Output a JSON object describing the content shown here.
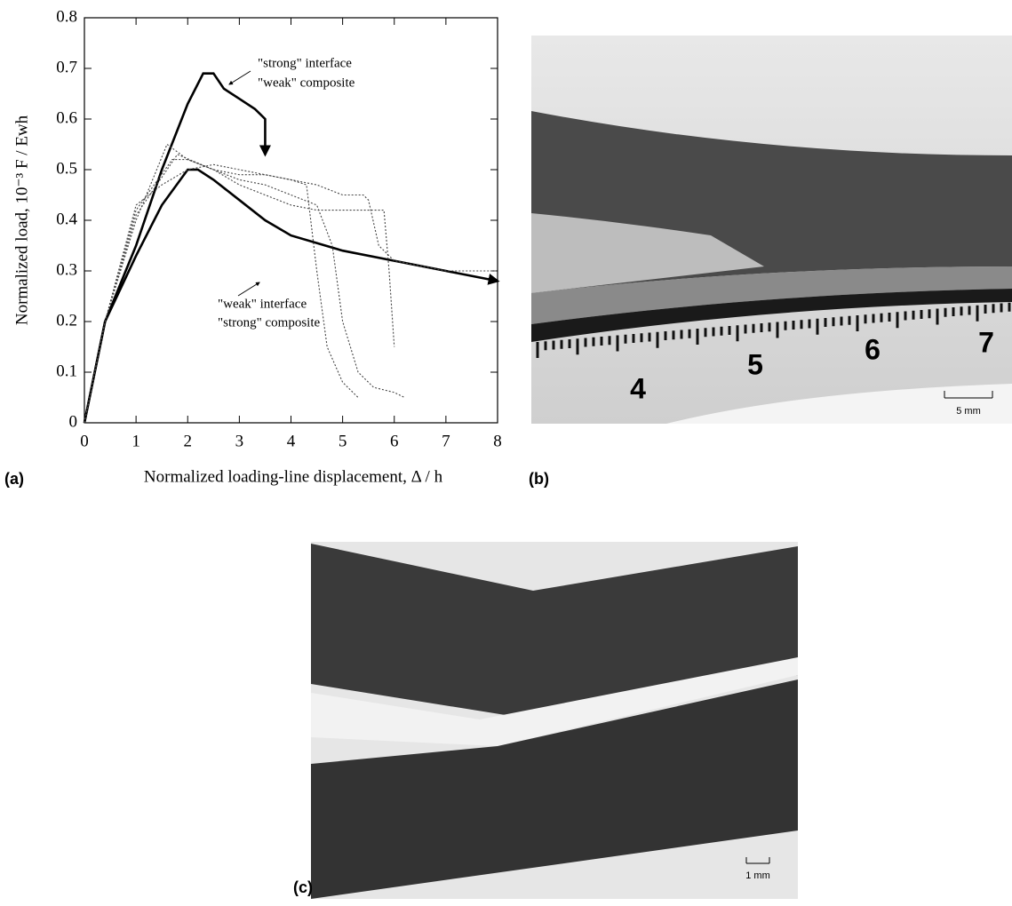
{
  "chart_data": {
    "type": "line",
    "xlabel": "Normalized loading-line displacement, Δ / h",
    "ylabel": "Normalized  load, 10⁻³ F / Ewh",
    "xlim": [
      0,
      8
    ],
    "xticks": [
      0,
      1,
      2,
      3,
      4,
      5,
      6,
      7,
      8
    ],
    "ylim": [
      0,
      0.8
    ],
    "yticks": [
      0,
      0.1,
      0.2,
      0.3,
      0.4,
      0.5,
      0.6,
      0.7,
      0.8
    ],
    "annotations": [
      "\"strong\" interface",
      "\"weak\" composite",
      "\"weak\" interface",
      "\"strong\" composite"
    ],
    "series": [
      {
        "color": "#000000",
        "style": "solid",
        "x": [
          0,
          0.4,
          1,
          1.5,
          2,
          2.3,
          2.5,
          2.7,
          3,
          3.3,
          3.5,
          3.5
        ],
        "values": [
          0,
          0.2,
          0.35,
          0.5,
          0.63,
          0.69,
          0.69,
          0.66,
          0.64,
          0.62,
          0.6,
          0.53
        ]
      },
      {
        "color": "#000000",
        "style": "solid",
        "x": [
          0,
          0.4,
          1,
          1.5,
          2,
          2.2,
          2.5,
          3,
          3.5,
          4,
          5,
          6,
          7,
          8
        ],
        "values": [
          0,
          0.2,
          0.33,
          0.43,
          0.5,
          0.5,
          0.48,
          0.44,
          0.4,
          0.37,
          0.34,
          0.32,
          0.3,
          0.28
        ]
      },
      {
        "color": "#444444",
        "style": "dotted",
        "x": [
          0,
          0.4,
          1,
          1.6,
          2,
          2.5,
          3,
          3.5,
          4,
          4.3,
          4.5,
          4.7,
          5,
          5.3
        ],
        "values": [
          0,
          0.2,
          0.4,
          0.55,
          0.52,
          0.5,
          0.49,
          0.49,
          0.48,
          0.47,
          0.3,
          0.15,
          0.08,
          0.05
        ]
      },
      {
        "color": "#444444",
        "style": "dotted",
        "x": [
          0,
          0.4,
          1,
          1.7,
          2,
          2.5,
          3,
          3.5,
          4,
          4.5,
          5,
          5.5,
          5.8,
          5.9,
          6.0
        ],
        "values": [
          0,
          0.2,
          0.42,
          0.52,
          0.52,
          0.5,
          0.47,
          0.45,
          0.43,
          0.42,
          0.42,
          0.42,
          0.42,
          0.3,
          0.15
        ]
      },
      {
        "color": "#444444",
        "style": "dotted",
        "x": [
          0,
          0.4,
          1,
          1.5,
          2,
          2.5,
          3,
          3.5,
          4,
          4.5,
          5,
          5.4,
          5.5,
          5.7,
          6,
          6.5,
          7,
          7.5,
          8
        ],
        "values": [
          0,
          0.2,
          0.43,
          0.47,
          0.5,
          0.51,
          0.5,
          0.49,
          0.48,
          0.47,
          0.45,
          0.45,
          0.44,
          0.35,
          0.32,
          0.31,
          0.3,
          0.3,
          0.3
        ]
      },
      {
        "color": "#444444",
        "style": "dotted",
        "x": [
          0,
          0.4,
          1,
          1.8,
          2.5,
          3,
          3.5,
          4,
          4.5,
          4.8,
          5,
          5.3,
          5.6,
          6,
          6.2
        ],
        "values": [
          0,
          0.2,
          0.41,
          0.53,
          0.5,
          0.48,
          0.47,
          0.45,
          0.43,
          0.35,
          0.2,
          0.1,
          0.07,
          0.06,
          0.05
        ]
      }
    ]
  },
  "panels": {
    "a": "(a)",
    "b": "(b)",
    "c": "(c)"
  },
  "photo_b": {
    "ruler_labels": [
      "4",
      "5",
      "6",
      "7"
    ],
    "scale_bar": "5 mm"
  },
  "photo_c": {
    "scale_bar": "1 mm"
  }
}
